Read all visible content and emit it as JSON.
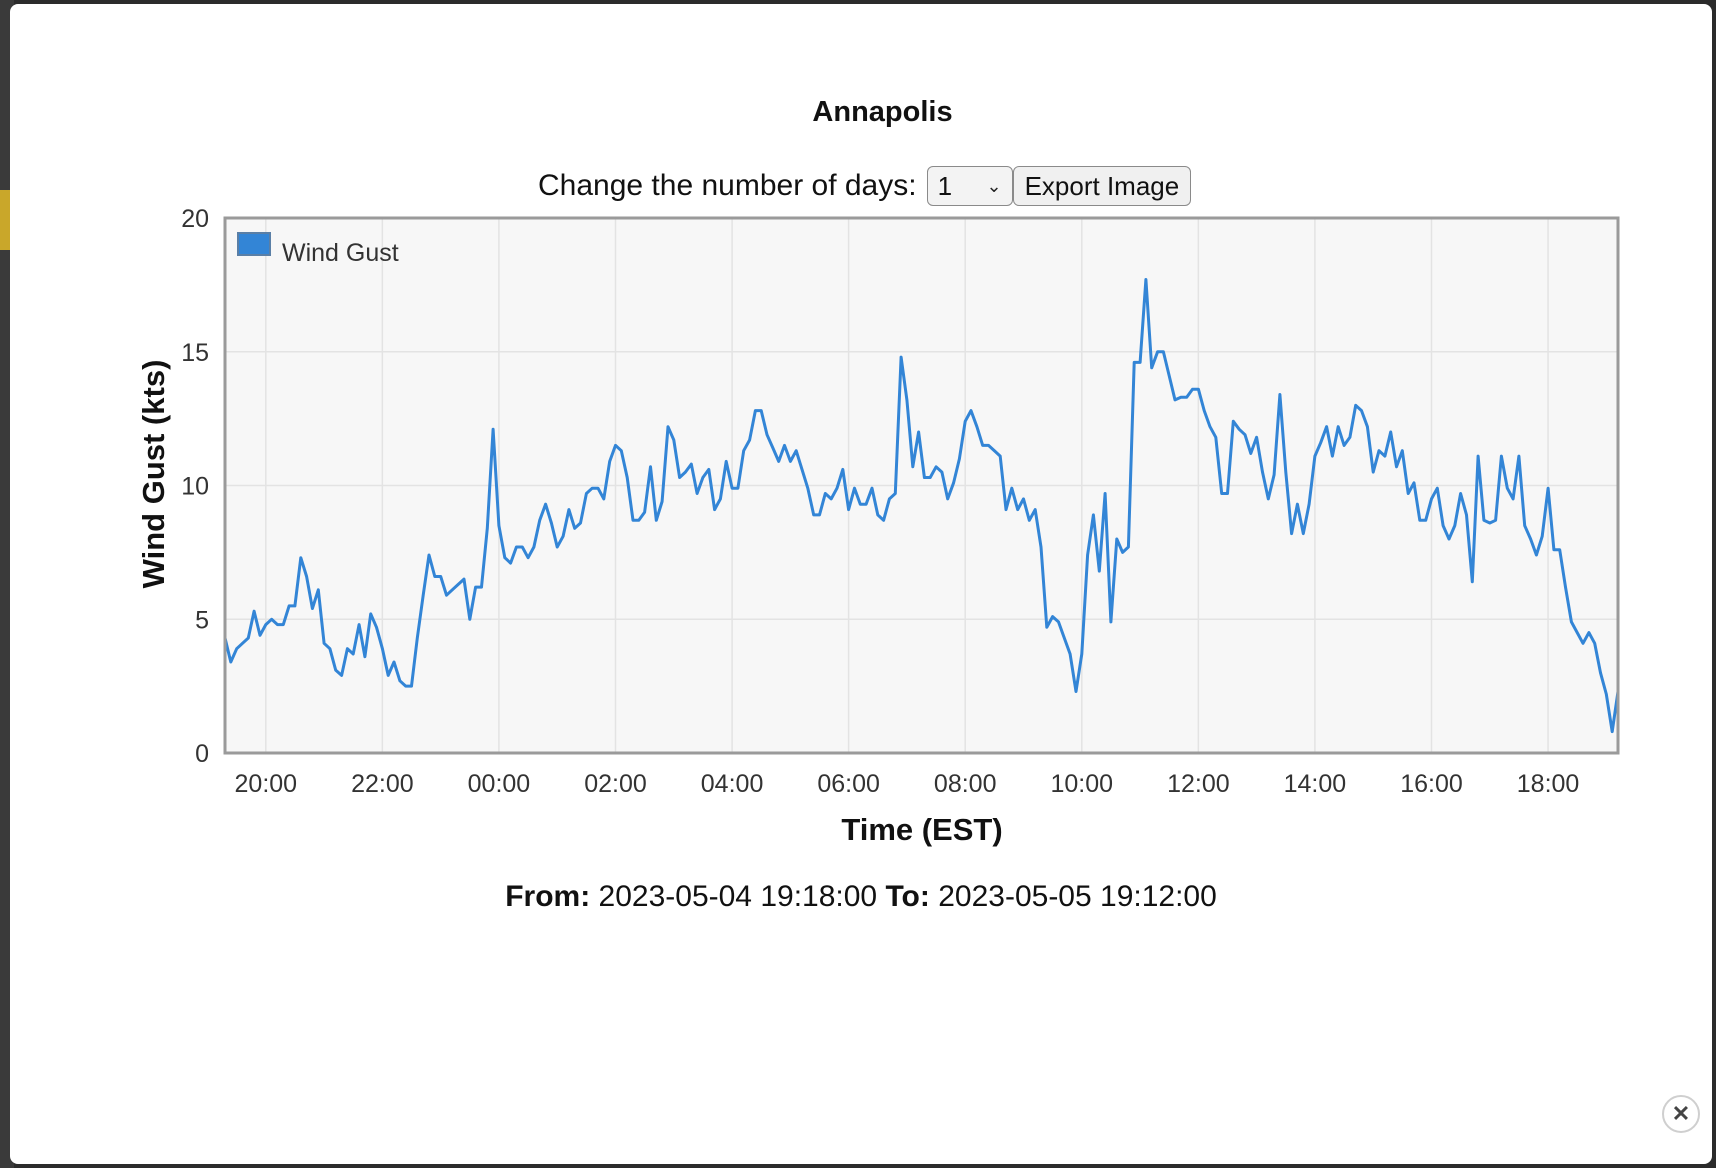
{
  "title": "Annapolis",
  "controls": {
    "days_label": "Change the number of days:",
    "days_value": "1",
    "export_label": "Export Image"
  },
  "range": {
    "from_label": "From:",
    "from_value": "2023-05-04 19:18:00",
    "to_label": "To:",
    "to_value": "2023-05-05 19:12:00"
  },
  "icons": {
    "close": "close-icon",
    "dropdown": "chevron-down-icon"
  },
  "chart_data": {
    "type": "line",
    "title": "",
    "xlabel": "Time (EST)",
    "ylabel": "Wind Gust (kts)",
    "x_start": "2023-05-04 19:18:00",
    "x_end": "2023-05-05 19:12:00",
    "xticks": [
      {
        "label": "20:00",
        "time": "2023-05-04 20:00"
      },
      {
        "label": "22:00",
        "time": "2023-05-04 22:00"
      },
      {
        "label": "00:00",
        "time": "2023-05-05 00:00"
      },
      {
        "label": "02:00",
        "time": "2023-05-05 02:00"
      },
      {
        "label": "04:00",
        "time": "2023-05-05 04:00"
      },
      {
        "label": "06:00",
        "time": "2023-05-05 06:00"
      },
      {
        "label": "08:00",
        "time": "2023-05-05 08:00"
      },
      {
        "label": "10:00",
        "time": "2023-05-05 10:00"
      },
      {
        "label": "12:00",
        "time": "2023-05-05 12:00"
      },
      {
        "label": "14:00",
        "time": "2023-05-05 14:00"
      },
      {
        "label": "16:00",
        "time": "2023-05-05 16:00"
      },
      {
        "label": "18:00",
        "time": "2023-05-05 18:00"
      }
    ],
    "yticks": [
      0,
      5,
      10,
      15,
      20
    ],
    "ylim": [
      0,
      20
    ],
    "grid": true,
    "legend_position": "top-left",
    "series": [
      {
        "name": "Wind Gust",
        "color": "#3385d6",
        "x": [
          "2023-05-04 19:18",
          "2023-05-04 19:24",
          "2023-05-04 19:30",
          "2023-05-04 19:36",
          "2023-05-04 19:42",
          "2023-05-04 19:48",
          "2023-05-04 19:54",
          "2023-05-04 20:00",
          "2023-05-04 20:06",
          "2023-05-04 20:12",
          "2023-05-04 20:18",
          "2023-05-04 20:24",
          "2023-05-04 20:30",
          "2023-05-04 20:36",
          "2023-05-04 20:42",
          "2023-05-04 20:48",
          "2023-05-04 20:54",
          "2023-05-04 21:00",
          "2023-05-04 21:06",
          "2023-05-04 21:12",
          "2023-05-04 21:18",
          "2023-05-04 21:24",
          "2023-05-04 21:30",
          "2023-05-04 21:36",
          "2023-05-04 21:42",
          "2023-05-04 21:48",
          "2023-05-04 21:54",
          "2023-05-04 22:00",
          "2023-05-04 22:06",
          "2023-05-04 22:12",
          "2023-05-04 22:18",
          "2023-05-04 22:24",
          "2023-05-04 22:30",
          "2023-05-04 22:36",
          "2023-05-04 22:42",
          "2023-05-04 22:48",
          "2023-05-04 22:54",
          "2023-05-04 23:00",
          "2023-05-04 23:06",
          "2023-05-04 23:12",
          "2023-05-04 23:18",
          "2023-05-04 23:24",
          "2023-05-04 23:30",
          "2023-05-04 23:36",
          "2023-05-04 23:42",
          "2023-05-04 23:48",
          "2023-05-04 23:54",
          "2023-05-05 00:00",
          "2023-05-05 00:06",
          "2023-05-05 00:12",
          "2023-05-05 00:18",
          "2023-05-05 00:24",
          "2023-05-05 00:30",
          "2023-05-05 00:36",
          "2023-05-05 00:42",
          "2023-05-05 00:48",
          "2023-05-05 00:54",
          "2023-05-05 01:00",
          "2023-05-05 01:06",
          "2023-05-05 01:12",
          "2023-05-05 01:18",
          "2023-05-05 01:24",
          "2023-05-05 01:30",
          "2023-05-05 01:36",
          "2023-05-05 01:42",
          "2023-05-05 01:48",
          "2023-05-05 01:54",
          "2023-05-05 02:00",
          "2023-05-05 02:06",
          "2023-05-05 02:12",
          "2023-05-05 02:18",
          "2023-05-05 02:24",
          "2023-05-05 02:30",
          "2023-05-05 02:36",
          "2023-05-05 02:42",
          "2023-05-05 02:48",
          "2023-05-05 02:54",
          "2023-05-05 03:00",
          "2023-05-05 03:06",
          "2023-05-05 03:12",
          "2023-05-05 03:18",
          "2023-05-05 03:24",
          "2023-05-05 03:30",
          "2023-05-05 03:36",
          "2023-05-05 03:42",
          "2023-05-05 03:48",
          "2023-05-05 03:54",
          "2023-05-05 04:00",
          "2023-05-05 04:06",
          "2023-05-05 04:12",
          "2023-05-05 04:18",
          "2023-05-05 04:24",
          "2023-05-05 04:30",
          "2023-05-05 04:36",
          "2023-05-05 04:42",
          "2023-05-05 04:48",
          "2023-05-05 04:54",
          "2023-05-05 05:00",
          "2023-05-05 05:06",
          "2023-05-05 05:12",
          "2023-05-05 05:18",
          "2023-05-05 05:24",
          "2023-05-05 05:30",
          "2023-05-05 05:36",
          "2023-05-05 05:42",
          "2023-05-05 05:48",
          "2023-05-05 05:54",
          "2023-05-05 06:00",
          "2023-05-05 06:06",
          "2023-05-05 06:12",
          "2023-05-05 06:18",
          "2023-05-05 06:24",
          "2023-05-05 06:30",
          "2023-05-05 06:36",
          "2023-05-05 06:42",
          "2023-05-05 06:48",
          "2023-05-05 06:54",
          "2023-05-05 07:00",
          "2023-05-05 07:06",
          "2023-05-05 07:12",
          "2023-05-05 07:18",
          "2023-05-05 07:24",
          "2023-05-05 07:30",
          "2023-05-05 07:36",
          "2023-05-05 07:42",
          "2023-05-05 07:48",
          "2023-05-05 07:54",
          "2023-05-05 08:00",
          "2023-05-05 08:06",
          "2023-05-05 08:12",
          "2023-05-05 08:18",
          "2023-05-05 08:24",
          "2023-05-05 08:30",
          "2023-05-05 08:36",
          "2023-05-05 08:42",
          "2023-05-05 08:48",
          "2023-05-05 08:54",
          "2023-05-05 09:00",
          "2023-05-05 09:06",
          "2023-05-05 09:12",
          "2023-05-05 09:18",
          "2023-05-05 09:24",
          "2023-05-05 09:30",
          "2023-05-05 09:36",
          "2023-05-05 09:42",
          "2023-05-05 09:48",
          "2023-05-05 09:54",
          "2023-05-05 10:00",
          "2023-05-05 10:06",
          "2023-05-05 10:12",
          "2023-05-05 10:18",
          "2023-05-05 10:24",
          "2023-05-05 10:30",
          "2023-05-05 10:36",
          "2023-05-05 10:42",
          "2023-05-05 10:48",
          "2023-05-05 10:54",
          "2023-05-05 11:00",
          "2023-05-05 11:06",
          "2023-05-05 11:12",
          "2023-05-05 11:18",
          "2023-05-05 11:24",
          "2023-05-05 11:30",
          "2023-05-05 11:36",
          "2023-05-05 11:42",
          "2023-05-05 11:48",
          "2023-05-05 11:54",
          "2023-05-05 12:00",
          "2023-05-05 12:06",
          "2023-05-05 12:12",
          "2023-05-05 12:18",
          "2023-05-05 12:24",
          "2023-05-05 12:30",
          "2023-05-05 12:36",
          "2023-05-05 12:42",
          "2023-05-05 12:48",
          "2023-05-05 12:54",
          "2023-05-05 13:00",
          "2023-05-05 13:06",
          "2023-05-05 13:12",
          "2023-05-05 13:18",
          "2023-05-05 13:24",
          "2023-05-05 13:30",
          "2023-05-05 13:36",
          "2023-05-05 13:42",
          "2023-05-05 13:48",
          "2023-05-05 13:54",
          "2023-05-05 14:00",
          "2023-05-05 14:06",
          "2023-05-05 14:12",
          "2023-05-05 14:18",
          "2023-05-05 14:24",
          "2023-05-05 14:30",
          "2023-05-05 14:36",
          "2023-05-05 14:42",
          "2023-05-05 14:48",
          "2023-05-05 14:54",
          "2023-05-05 15:00",
          "2023-05-05 15:06",
          "2023-05-05 15:12",
          "2023-05-05 15:18",
          "2023-05-05 15:24",
          "2023-05-05 15:30",
          "2023-05-05 15:36",
          "2023-05-05 15:42",
          "2023-05-05 15:48",
          "2023-05-05 15:54",
          "2023-05-05 16:00",
          "2023-05-05 16:06",
          "2023-05-05 16:12",
          "2023-05-05 16:18",
          "2023-05-05 16:24",
          "2023-05-05 16:30",
          "2023-05-05 16:36",
          "2023-05-05 16:42",
          "2023-05-05 16:48",
          "2023-05-05 16:54",
          "2023-05-05 17:00",
          "2023-05-05 17:06",
          "2023-05-05 17:12",
          "2023-05-05 17:18",
          "2023-05-05 17:24",
          "2023-05-05 17:30",
          "2023-05-05 17:36",
          "2023-05-05 17:42",
          "2023-05-05 17:48",
          "2023-05-05 17:54",
          "2023-05-05 18:00",
          "2023-05-05 18:06",
          "2023-05-05 18:12",
          "2023-05-05 18:18",
          "2023-05-05 18:24",
          "2023-05-05 18:30",
          "2023-05-05 18:36",
          "2023-05-05 18:42",
          "2023-05-05 18:48",
          "2023-05-05 18:54",
          "2023-05-05 19:00",
          "2023-05-05 19:06",
          "2023-05-05 19:12"
        ],
        "values": [
          4.3,
          3.4,
          3.9,
          4.1,
          4.3,
          5.3,
          4.4,
          4.8,
          5.0,
          4.8,
          4.8,
          5.5,
          5.5,
          7.3,
          6.6,
          5.4,
          6.1,
          4.1,
          3.9,
          3.1,
          2.9,
          3.9,
          3.7,
          4.8,
          3.6,
          5.2,
          4.7,
          3.9,
          2.9,
          3.4,
          2.7,
          2.5,
          2.5,
          4.3,
          5.9,
          7.4,
          6.6,
          6.6,
          5.9,
          6.1,
          6.3,
          6.5,
          5.0,
          6.2,
          6.2,
          8.4,
          12.1,
          8.5,
          7.3,
          7.1,
          7.7,
          7.7,
          7.3,
          7.7,
          8.7,
          9.3,
          8.6,
          7.7,
          8.1,
          9.1,
          8.4,
          8.6,
          9.7,
          9.9,
          9.9,
          9.5,
          10.9,
          11.5,
          11.3,
          10.3,
          8.7,
          8.7,
          9.0,
          10.7,
          8.7,
          9.4,
          12.2,
          11.7,
          10.3,
          10.5,
          10.8,
          9.7,
          10.3,
          10.6,
          9.1,
          9.5,
          10.9,
          9.9,
          9.9,
          11.3,
          11.7,
          12.8,
          12.8,
          11.9,
          11.4,
          10.9,
          11.5,
          10.9,
          11.3,
          10.6,
          9.9,
          8.9,
          8.9,
          9.7,
          9.5,
          9.9,
          10.6,
          9.1,
          9.9,
          9.3,
          9.3,
          9.9,
          8.9,
          8.7,
          9.5,
          9.7,
          14.8,
          13.2,
          10.7,
          12.0,
          10.3,
          10.3,
          10.7,
          10.5,
          9.5,
          10.1,
          11.0,
          12.4,
          12.8,
          12.2,
          11.5,
          11.5,
          11.3,
          11.1,
          9.1,
          9.9,
          9.1,
          9.5,
          8.7,
          9.1,
          7.7,
          4.7,
          5.1,
          4.9,
          4.3,
          3.7,
          2.3,
          3.7,
          7.4,
          8.9,
          6.8,
          9.7,
          4.9,
          8.0,
          7.5,
          7.7,
          14.6,
          14.6,
          17.7,
          14.4,
          15.0,
          15.0,
          14.1,
          13.2,
          13.3,
          13.3,
          13.6,
          13.6,
          12.8,
          12.2,
          11.8,
          9.7,
          9.7,
          12.4,
          12.1,
          11.9,
          11.2,
          11.8,
          10.5,
          9.5,
          10.4,
          13.4,
          10.5,
          8.2,
          9.3,
          8.2,
          9.3,
          11.1,
          11.6,
          12.2,
          11.1,
          12.2,
          11.5,
          11.8,
          13.0,
          12.8,
          12.2,
          10.5,
          11.3,
          11.1,
          12.0,
          10.7,
          11.3,
          9.7,
          10.1,
          8.7,
          8.7,
          9.5,
          9.9,
          8.5,
          8.0,
          8.5,
          9.7,
          8.9,
          6.4,
          11.1,
          8.7,
          8.6,
          8.7,
          11.1,
          9.9,
          9.5,
          11.1,
          8.5,
          8.0,
          7.4,
          8.1,
          9.9,
          7.6,
          7.6,
          6.2,
          4.9,
          4.5,
          4.1,
          4.5,
          4.1,
          3.0,
          2.2,
          0.8,
          2.3
        ]
      }
    ]
  }
}
